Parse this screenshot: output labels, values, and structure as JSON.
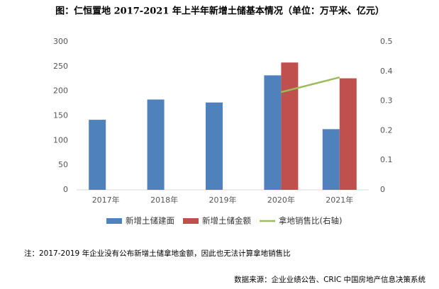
{
  "chart_data": {
    "type": "bar",
    "title": "图：仁恒置地 2017-2021 年上半年新增土储基本情况（单位：万平米、亿元）",
    "categories": [
      "2017年",
      "2018年",
      "2019年",
      "2020年",
      "2021年"
    ],
    "series": [
      {
        "name": "新增土储建面",
        "color": "#4f81bd",
        "type": "bar",
        "values": [
          142,
          183,
          177,
          232,
          123
        ]
      },
      {
        "name": "新增土储金额",
        "color": "#c0504d",
        "type": "bar",
        "values": [
          null,
          null,
          null,
          258,
          226
        ]
      },
      {
        "name": "拿地销售比(右轴)",
        "color": "#9bbb59",
        "type": "line",
        "axis": "y2",
        "values": [
          null,
          null,
          null,
          0.33,
          0.38
        ]
      }
    ],
    "ylim": [
      0,
      300
    ],
    "yticks": [
      0,
      50,
      100,
      150,
      200,
      250,
      300
    ],
    "y2lim": [
      0,
      0.5
    ],
    "y2ticks": [
      0,
      0.1,
      0.2,
      0.3,
      0.4,
      0.5
    ],
    "note": "注：2017-2019 年企业没有公布新增土储拿地金额，因此也无法计算拿地销售比",
    "source": "数据来源：企业业绩公告、CRIC 中国房地产信息决策系统"
  }
}
